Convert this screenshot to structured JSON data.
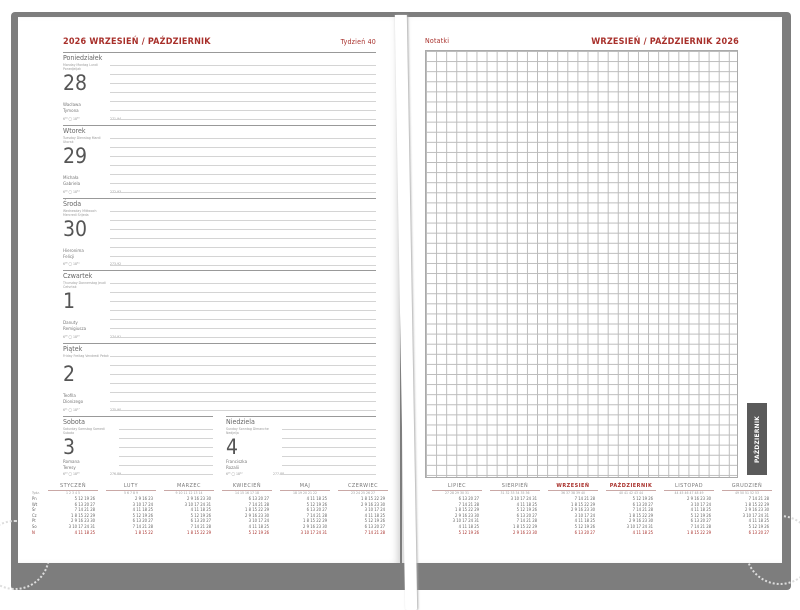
{
  "left_page": {
    "title": "2026 WRZESIEŃ / PAŹDZIERNIK",
    "week": "Tydzień 40",
    "days": [
      {
        "name": "Poniedziałek",
        "sub": "Monday Montag Lundi Ponedjeljak",
        "num": "28",
        "names": "Wacława\nTymona",
        "foot": "6⁰⁴ ◯ 18³⁶",
        "foot2": "271-94"
      },
      {
        "name": "Wtorek",
        "sub": "Tuesday Dienstag Mardi Utorak",
        "num": "29",
        "names": "Michała\nGabriela",
        "foot": "6⁰⁶ ◯ 18³⁴",
        "foot2": "272-93"
      },
      {
        "name": "Środa",
        "sub": "Wednesday Mittwoch Mercredi Srijeda",
        "num": "30",
        "names": "Hieronima\nFelicji",
        "foot": "6⁰⁸ ◯ 18³¹",
        "foot2": "273-92"
      },
      {
        "name": "Czwartek",
        "sub": "Thursday Donnerstag Jeudi Četvrtak",
        "num": "1",
        "names": "Danuty\nRemigiusza",
        "foot": "6⁰⁹ ◯ 18²⁹",
        "foot2": "274-91"
      },
      {
        "name": "Piątek",
        "sub": "Friday Freitag Vendredi Petak",
        "num": "2",
        "names": "Teofila\nDionizego",
        "foot": "6¹¹ ◯ 18²⁷",
        "foot2": "275-90"
      },
      {
        "name": "Sobota",
        "sub": "Saturday Samstag Samedi Subota",
        "num": "3",
        "names": "Romana\nTeresy",
        "foot": "6¹³ ◯ 18²⁵",
        "foot2": "276-89"
      },
      {
        "name": "Niedziela",
        "sub": "Sunday Sonntag Dimanche Nedjelja",
        "num": "4",
        "names": "Franciszka\nRozalii",
        "foot": "6¹⁵ ◯ 18²²",
        "foot2": "277-88",
        "holiday": true
      }
    ]
  },
  "right_page": {
    "notes_label": "Notatki",
    "title": "WRZESIEŃ / PAŹDZIERNIK 2026",
    "tab": "PAŹDZIERNIK"
  },
  "calendar": {
    "row_labels": [
      "Tydz.",
      "Pn",
      "Wt",
      "Śr",
      "Cz",
      "Pt",
      "So",
      "N"
    ],
    "months": [
      {
        "name": "STYCZEŃ",
        "weeks": "1 2 3 4 5",
        "rows": [
          "5 12 19 26",
          "6 13 20 27",
          "7 14 21 28",
          "1 8 15 22 29",
          "2 9 16 23 30",
          "3 10 17 24 31",
          "4 11 18 25"
        ]
      },
      {
        "name": "LUTY",
        "weeks": "5 6 7 8 9",
        "rows": [
          "2 9 16 23",
          "3 10 17 24",
          "4 11 18 25",
          "5 12 19 26",
          "6 13 20 27",
          "7 14 21 28",
          "1 8 15 22"
        ]
      },
      {
        "name": "MARZEC",
        "weeks": "9 10 11 12 13 14",
        "rows": [
          "2 9 16 23 30",
          "3 10 17 24 31",
          "4 11 18 25",
          "5 12 19 26",
          "6 13 20 27",
          "7 14 21 28",
          "1 8 15 22 29"
        ]
      },
      {
        "name": "KWIECIEŃ",
        "weeks": "14 15 16 17 18",
        "rows": [
          "6 13 20 27",
          "7 14 21 28",
          "1 8 15 22 29",
          "2 9 16 23 30",
          "3 10 17 24",
          "4 11 18 25",
          "5 12 19 26"
        ]
      },
      {
        "name": "MAJ",
        "weeks": "18 19 20 21 22",
        "rows": [
          "4 11 18 25",
          "5 12 19 26",
          "6 13 20 27",
          "7 14 21 28",
          "1 8 15 22 29",
          "2 9 16 23 30",
          "3 10 17 24 31"
        ]
      },
      {
        "name": "CZERWIEC",
        "weeks": "23 24 25 26 27",
        "rows": [
          "1 8 15 22 29",
          "2 9 16 23 30",
          "3 10 17 24",
          "4 11 18 25",
          "5 12 19 26",
          "6 13 20 27",
          "7 14 21 28"
        ]
      },
      {
        "name": "LIPIEC",
        "weeks": "27 28 29 30 31",
        "rows": [
          "6 13 20 27",
          "7 14 21 28",
          "1 8 15 22 29",
          "2 9 16 23 30",
          "3 10 17 24 31",
          "4 11 18 25",
          "5 12 19 26"
        ]
      },
      {
        "name": "SIERPIEŃ",
        "weeks": "31 32 33 34 35 36",
        "rows": [
          "3 10 17 24 31",
          "4 11 18 25",
          "5 12 19 26",
          "6 13 20 27",
          "7 14 21 28",
          "1 8 15 22 29",
          "2 9 16 23 30"
        ]
      },
      {
        "name": "WRZESIEŃ",
        "weeks": "36 37 38 39 40",
        "rows": [
          "7 14 21 28",
          "1 8 15 22 29",
          "2 9 16 23 30",
          "3 10 17 24",
          "4 11 18 25",
          "5 12 19 26",
          "6 13 20 27"
        ],
        "highlight": true
      },
      {
        "name": "PAŹDZIERNIK",
        "weeks": "40 41 42 43 44",
        "rows": [
          "5 12 19 26",
          "6 13 20 27",
          "7 14 21 28",
          "1 8 15 22 29",
          "2 9 16 23 30",
          "3 10 17 24 31",
          "4 11 18 25"
        ],
        "highlight": true
      },
      {
        "name": "LISTOPAD",
        "weeks": "44 45 46 47 48 49",
        "rows": [
          "2 9 16 23 30",
          "3 10 17 24",
          "4 11 18 25",
          "5 12 19 26",
          "6 13 20 27",
          "7 14 21 28",
          "1 8 15 22 29"
        ]
      },
      {
        "name": "GRUDZIEŃ",
        "weeks": "49 50 51 52 53",
        "rows": [
          "7 14 21 28",
          "1 8 15 22 29",
          "2 9 16 23 30",
          "3 10 17 24 31",
          "4 11 18 25",
          "5 12 19 26",
          "6 13 20 27"
        ]
      }
    ]
  },
  "colors": {
    "accent": "#a8302b",
    "cover": "#7d7d7d",
    "tab": "#5a5a5a"
  }
}
